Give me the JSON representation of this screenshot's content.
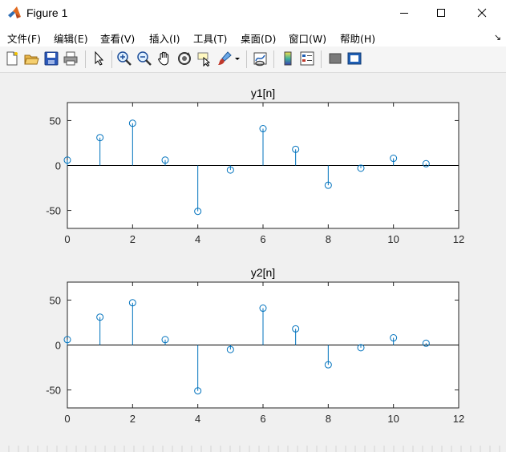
{
  "window": {
    "title": "Figure 1"
  },
  "menu": [
    "文件(F)",
    "编辑(E)",
    "查看(V)",
    "插入(I)",
    "工具(T)",
    "桌面(D)",
    "窗口(W)",
    "帮助(H)"
  ],
  "toolbar": [
    "new-figure-icon",
    "open-file-icon",
    "save-icon",
    "print-icon",
    "edit-plot-pointer-icon",
    "zoom-in-icon",
    "zoom-out-icon",
    "pan-hand-icon",
    "rotate-3d-icon",
    "data-cursor-icon",
    "brush-icon",
    "link-plot-icon",
    "insert-colorbar-icon",
    "insert-legend-icon",
    "hide-plot-tools-icon",
    "show-plot-tools-icon"
  ],
  "chart_data": [
    {
      "type": "stem",
      "title": "y1[n]",
      "x": [
        0,
        1,
        2,
        3,
        4,
        5,
        6,
        7,
        8,
        9,
        10,
        11
      ],
      "values": [
        6,
        31,
        47,
        6,
        -51,
        -5,
        41,
        18,
        -22,
        -3,
        8,
        2
      ],
      "xlim": [
        0,
        12
      ],
      "ylim": [
        -70,
        70
      ],
      "xticks": [
        "0",
        "2",
        "4",
        "6",
        "8",
        "10",
        "12"
      ],
      "yticks": [
        "-50",
        "0",
        "50"
      ],
      "color": "#0072bd",
      "grid": false
    },
    {
      "type": "stem",
      "title": "y2[n]",
      "x": [
        0,
        1,
        2,
        3,
        4,
        5,
        6,
        7,
        8,
        9,
        10,
        11
      ],
      "values": [
        6,
        31,
        47,
        6,
        -51,
        -5,
        41,
        18,
        -22,
        -3,
        8,
        2
      ],
      "xlim": [
        0,
        12
      ],
      "ylim": [
        -70,
        70
      ],
      "xticks": [
        "0",
        "2",
        "4",
        "6",
        "8",
        "10",
        "12"
      ],
      "yticks": [
        "-50",
        "0",
        "50"
      ],
      "color": "#0072bd",
      "grid": false
    }
  ]
}
